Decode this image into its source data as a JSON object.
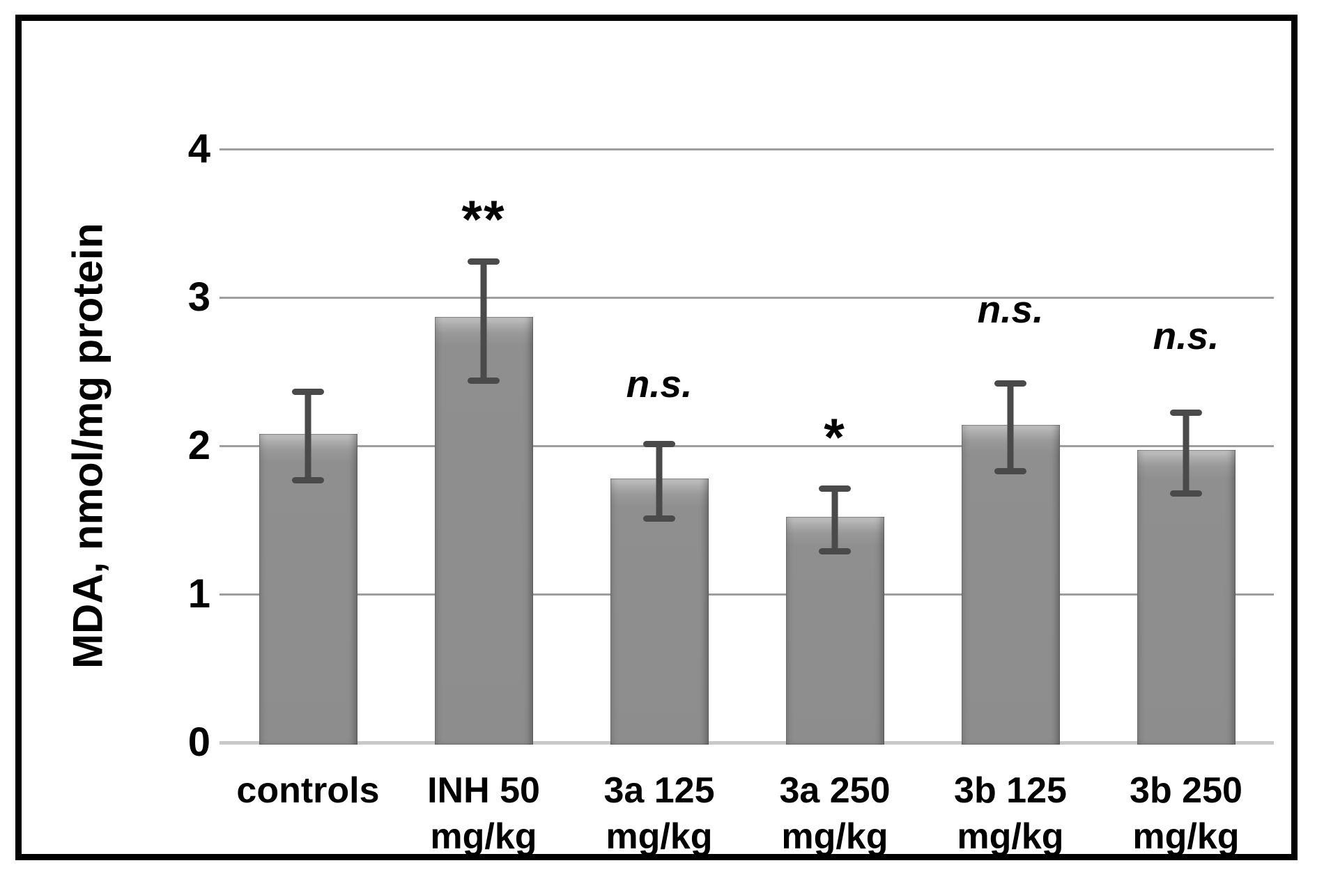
{
  "figure": {
    "background": "#ffffff",
    "border_color": "#000000"
  },
  "chart_data": {
    "type": "bar",
    "title": "",
    "xlabel": "",
    "ylabel": "MDA, nmol/mg protein",
    "ylim": [
      0,
      4
    ],
    "yticks": [
      0,
      1,
      2,
      3,
      4
    ],
    "grid": true,
    "legend": false,
    "bar_color": "#8f8f8f",
    "error_bar_color": "#4a4a4a",
    "gridline_color": "#9e9e9e",
    "axis_line_color": "#c8c8c8",
    "categories": [
      [
        "controls"
      ],
      [
        "INH 50",
        "mg/kg"
      ],
      [
        "3a 125",
        "mg/kg"
      ],
      [
        "3a 250",
        "mg/kg"
      ],
      [
        "3b 125",
        "mg/kg"
      ],
      [
        "3b 250",
        "mg/kg"
      ]
    ],
    "series": [
      {
        "name": "MDA, nmol/mg protein",
        "values": [
          2.08,
          2.87,
          1.78,
          1.52,
          2.14,
          1.97
        ],
        "error_lower": [
          1.77,
          2.44,
          1.51,
          1.29,
          1.83,
          1.68
        ],
        "error_upper": [
          2.36,
          3.24,
          2.01,
          1.71,
          2.42,
          2.22
        ]
      }
    ],
    "annotations": [
      {
        "bar": 1,
        "label": "**",
        "style": "stars",
        "y": 3.56
      },
      {
        "bar": 2,
        "label": "n.s.",
        "style": "ns",
        "y": 2.42
      },
      {
        "bar": 3,
        "label": "*",
        "style": "stars",
        "y": 2.09
      },
      {
        "bar": 4,
        "label": "n.s.",
        "style": "ns",
        "y": 2.92
      },
      {
        "bar": 5,
        "label": "n.s.",
        "style": "ns",
        "y": 2.74
      }
    ]
  }
}
